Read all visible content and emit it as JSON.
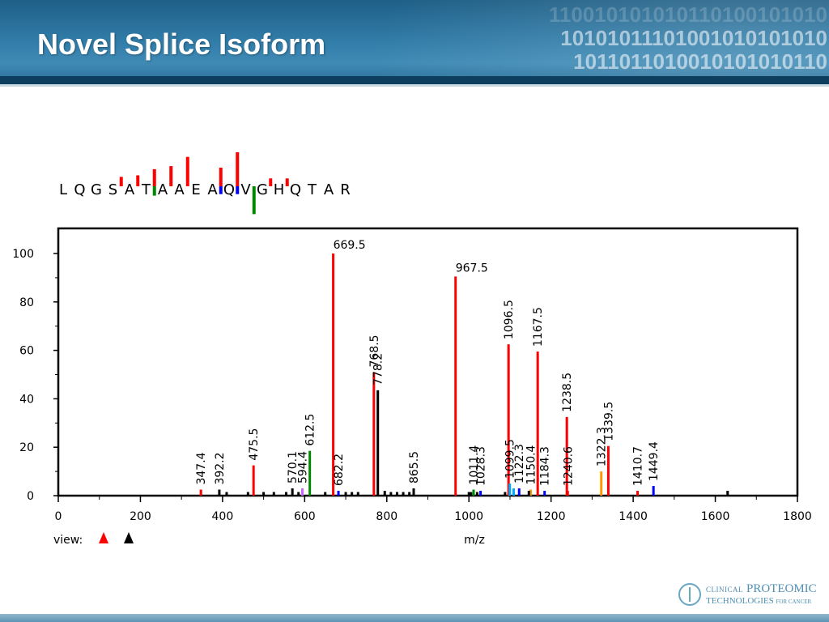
{
  "slide": {
    "title": "Novel Splice Isoform",
    "binary_lines": [
      "110010101010110100101010",
      "10101011101001010101010",
      "1011011010010101010110"
    ]
  },
  "logo": {
    "line1_small": "CLINICAL",
    "line1_big": "PROTEOMIC",
    "line2_big": "TECHNOLOGIES",
    "line2_small": "FOR CANCER"
  },
  "chart_data": {
    "type": "bar",
    "xlabel": "m/z",
    "ylabel": "",
    "xlim": [
      0,
      1800
    ],
    "ylim": [
      0,
      110
    ],
    "x_ticks": [
      0,
      200,
      400,
      600,
      800,
      1000,
      1200,
      1400,
      1600,
      1800
    ],
    "y_ticks": [
      0,
      20,
      40,
      60,
      80,
      100
    ],
    "grid": false,
    "view_label": "view:",
    "view_markers": [
      {
        "color": "#ff0000"
      },
      {
        "color": "#000000"
      }
    ],
    "sequence": {
      "residues": [
        "L",
        "Q",
        "G",
        "S",
        "A",
        "T",
        "A",
        "A",
        "E",
        "A",
        "Q",
        "V",
        "G",
        "H",
        "Q",
        "T",
        "A",
        "R"
      ],
      "cleavages": [
        {
          "after": 4,
          "side": "top",
          "color": "#ff0000",
          "size": 0.2
        },
        {
          "after": 5,
          "side": "top",
          "color": "#ff0000",
          "size": 0.25
        },
        {
          "after": 6,
          "side": "top",
          "color": "#ff0000",
          "size": 0.45
        },
        {
          "after": 6,
          "side": "bottom",
          "color": "#008800",
          "size": 0.2
        },
        {
          "after": 7,
          "side": "top",
          "color": "#ff0000",
          "size": 0.55
        },
        {
          "after": 8,
          "side": "top",
          "color": "#ff0000",
          "size": 0.85
        },
        {
          "after": 10,
          "side": "top",
          "color": "#ff0000",
          "size": 0.5
        },
        {
          "after": 10,
          "side": "bottom",
          "color": "#0000ff",
          "size": 0.15
        },
        {
          "after": 11,
          "side": "top",
          "color": "#ff0000",
          "size": 1.0
        },
        {
          "after": 11,
          "side": "bottom",
          "color": "#0000ff",
          "size": 0.15
        },
        {
          "after": 12,
          "side": "bottom",
          "color": "#008800",
          "size": 0.8
        },
        {
          "after": 13,
          "side": "top",
          "color": "#ff0000",
          "size": 0.15
        },
        {
          "after": 14,
          "side": "top",
          "color": "#ff0000",
          "size": 0.15
        }
      ]
    },
    "peaks": [
      {
        "x": 347.4,
        "y": 2.5,
        "color": "#ff0000",
        "label": "347.4"
      },
      {
        "x": 392.2,
        "y": 2.5,
        "color": "#000000",
        "label": "392.2"
      },
      {
        "x": 475.5,
        "y": 12.5,
        "color": "#ff0000",
        "label": "475.5"
      },
      {
        "x": 570.1,
        "y": 3,
        "color": "#000000",
        "label": "570.1"
      },
      {
        "x": 594.4,
        "y": 3,
        "color": "#cc66ff",
        "label": "594.4"
      },
      {
        "x": 612.5,
        "y": 18.5,
        "color": "#008800",
        "label": "612.5"
      },
      {
        "x": 669.5,
        "y": 100,
        "color": "#ff0000",
        "label": "669.5"
      },
      {
        "x": 682.2,
        "y": 2,
        "color": "#0000ff",
        "label": "682.2"
      },
      {
        "x": 768.5,
        "y": 51,
        "color": "#ff0000",
        "label": "768.5"
      },
      {
        "x": 778.2,
        "y": 43.5,
        "color": "#000000",
        "label": "778.2"
      },
      {
        "x": 865.5,
        "y": 3,
        "color": "#000000",
        "label": "865.5"
      },
      {
        "x": 967.5,
        "y": 90.5,
        "color": "#ff0000",
        "label": "967.5"
      },
      {
        "x": 1011.4,
        "y": 2.5,
        "color": "#008800",
        "label": "1011.4"
      },
      {
        "x": 1028.3,
        "y": 2,
        "color": "#0000ff",
        "label": "1028.3"
      },
      {
        "x": 1096.5,
        "y": 62.5,
        "color": "#ff0000",
        "label": "1096.5"
      },
      {
        "x": 1099.5,
        "y": 5,
        "color": "#00aaff",
        "label": "1099.5"
      },
      {
        "x": 1122.3,
        "y": 3,
        "color": "#0000ff",
        "label": "1122.3"
      },
      {
        "x": 1150.4,
        "y": 2.5,
        "color": "#ff9900",
        "label": "1150.4"
      },
      {
        "x": 1167.5,
        "y": 59.5,
        "color": "#ff0000",
        "label": "1167.5"
      },
      {
        "x": 1184.3,
        "y": 2,
        "color": "#0000ff",
        "label": "1184.3"
      },
      {
        "x": 1238.5,
        "y": 32.5,
        "color": "#ff0000",
        "label": "1238.5"
      },
      {
        "x": 1240.6,
        "y": 2,
        "color": "#ff0000",
        "label": "1240.6"
      },
      {
        "x": 1322.3,
        "y": 10,
        "color": "#ff9900",
        "label": "1322.3"
      },
      {
        "x": 1339.5,
        "y": 20.5,
        "color": "#ff0000",
        "label": "1339.5"
      },
      {
        "x": 1410.7,
        "y": 2,
        "color": "#ff0000",
        "label": "1410.7"
      },
      {
        "x": 1449.4,
        "y": 4,
        "color": "#0000ff",
        "label": "1449.4"
      },
      {
        "x": 1109,
        "y": 3,
        "color": "#00aaff",
        "label": ""
      },
      {
        "x": 1146,
        "y": 2,
        "color": "#000000",
        "label": ""
      },
      {
        "x": 1005,
        "y": 1.5,
        "color": "#000000",
        "label": ""
      },
      {
        "x": 1020,
        "y": 1.5,
        "color": "#000000",
        "label": ""
      },
      {
        "x": 1000,
        "y": 1.5,
        "color": "#000000",
        "label": ""
      },
      {
        "x": 410,
        "y": 1.5,
        "color": "#000000",
        "label": ""
      },
      {
        "x": 462,
        "y": 1.5,
        "color": "#000000",
        "label": ""
      },
      {
        "x": 500,
        "y": 1.5,
        "color": "#000000",
        "label": ""
      },
      {
        "x": 525,
        "y": 1.5,
        "color": "#000000",
        "label": ""
      },
      {
        "x": 555,
        "y": 1.5,
        "color": "#000000",
        "label": ""
      },
      {
        "x": 585,
        "y": 1.5,
        "color": "#000000",
        "label": ""
      },
      {
        "x": 650,
        "y": 1.5,
        "color": "#000000",
        "label": ""
      },
      {
        "x": 700,
        "y": 1.5,
        "color": "#000000",
        "label": ""
      },
      {
        "x": 715,
        "y": 1.5,
        "color": "#000000",
        "label": ""
      },
      {
        "x": 730,
        "y": 1.5,
        "color": "#000000",
        "label": ""
      },
      {
        "x": 795,
        "y": 2,
        "color": "#000000",
        "label": ""
      },
      {
        "x": 810,
        "y": 1.5,
        "color": "#000000",
        "label": ""
      },
      {
        "x": 825,
        "y": 1.5,
        "color": "#000000",
        "label": ""
      },
      {
        "x": 840,
        "y": 1.5,
        "color": "#000000",
        "label": ""
      },
      {
        "x": 855,
        "y": 1.5,
        "color": "#000000",
        "label": ""
      },
      {
        "x": 1088,
        "y": 1.5,
        "color": "#000000",
        "label": ""
      },
      {
        "x": 1630,
        "y": 2,
        "color": "#000000",
        "label": ""
      }
    ]
  }
}
